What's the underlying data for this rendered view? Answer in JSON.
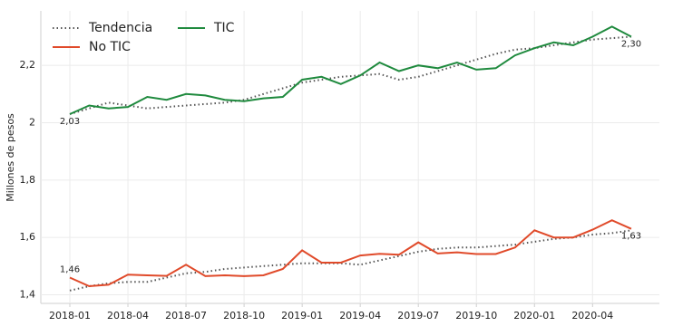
{
  "chart_data": {
    "type": "line",
    "y_label": "Millones de pesos",
    "categories": [
      "2018-01",
      null,
      null,
      "2018-04",
      null,
      null,
      "2018-07",
      null,
      null,
      "2018-10",
      null,
      null,
      "2019-01",
      null,
      null,
      "2019-04",
      null,
      null,
      "2019-07",
      null,
      null,
      "2019-10",
      null,
      null,
      "2020-01",
      null,
      null,
      "2020-04",
      null,
      null
    ],
    "trend_name": "Tendencia",
    "trend_color": "#555555",
    "series": [
      {
        "name": "No TIC",
        "color": "#e04a2a",
        "values": [
          1.46,
          1.43,
          1.435,
          1.47,
          1.468,
          1.466,
          1.505,
          1.465,
          1.468,
          1.465,
          1.468,
          1.49,
          1.555,
          1.512,
          1.512,
          1.537,
          1.543,
          1.54,
          1.583,
          1.544,
          1.548,
          1.542,
          1.542,
          1.565,
          1.625,
          1.6,
          1.6,
          1.627,
          1.66,
          1.63
        ],
        "value_labels": [
          "1,46",
          null,
          null,
          null,
          null,
          null,
          null,
          null,
          null,
          null,
          null,
          null,
          null,
          null,
          null,
          null,
          null,
          null,
          null,
          null,
          null,
          null,
          null,
          null,
          null,
          null,
          null,
          null,
          null,
          "1,63"
        ],
        "trend": [
          1.415,
          1.43,
          1.44,
          1.445,
          1.445,
          1.46,
          1.475,
          1.48,
          1.49,
          1.495,
          1.5,
          1.505,
          1.51,
          1.51,
          1.51,
          1.505,
          1.52,
          1.535,
          1.55,
          1.56,
          1.565,
          1.565,
          1.57,
          1.575,
          1.585,
          1.595,
          1.6,
          1.61,
          1.615,
          1.625
        ]
      },
      {
        "name": "TIC",
        "color": "#1f8a3e",
        "values": [
          2.03,
          2.06,
          2.05,
          2.055,
          2.09,
          2.08,
          2.1,
          2.095,
          2.08,
          2.075,
          2.085,
          2.09,
          2.15,
          2.16,
          2.135,
          2.165,
          2.21,
          2.18,
          2.2,
          2.19,
          2.21,
          2.185,
          2.19,
          2.235,
          2.26,
          2.28,
          2.27,
          2.3,
          2.335,
          2.3
        ],
        "value_labels": [
          "2,03",
          null,
          null,
          null,
          null,
          null,
          null,
          null,
          null,
          null,
          null,
          null,
          null,
          null,
          null,
          null,
          null,
          null,
          null,
          null,
          null,
          null,
          null,
          null,
          null,
          null,
          null,
          null,
          null,
          "2,30"
        ],
        "trend": [
          2.03,
          2.05,
          2.07,
          2.06,
          2.05,
          2.055,
          2.06,
          2.065,
          2.07,
          2.08,
          2.1,
          2.12,
          2.14,
          2.15,
          2.16,
          2.165,
          2.17,
          2.15,
          2.16,
          2.18,
          2.2,
          2.22,
          2.24,
          2.255,
          2.26,
          2.27,
          2.28,
          2.29,
          2.295,
          2.3
        ]
      }
    ],
    "ylim": [
      1.37,
      2.39
    ],
    "yticks": [
      {
        "value": 1.4,
        "label": "1,4"
      },
      {
        "value": 1.6,
        "label": "1,6"
      },
      {
        "value": 1.8,
        "label": "1,8"
      },
      2,
      {
        "value": 2.2,
        "label": "2,2"
      }
    ],
    "grid": true
  }
}
